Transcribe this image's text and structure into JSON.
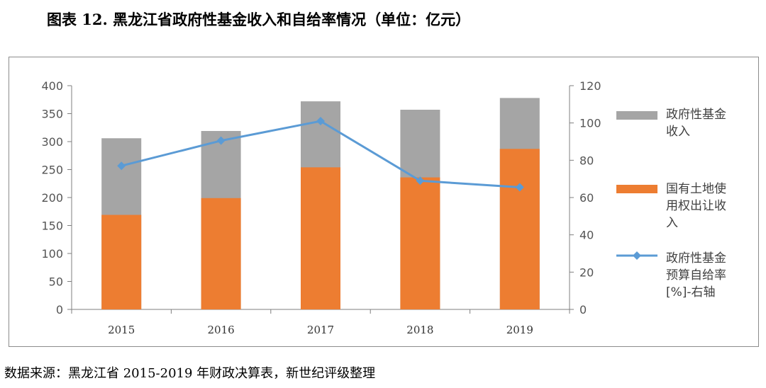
{
  "title": "图表 12. 黑龙江省政府性基金收入和自给率情况（单位：亿元）",
  "source": "数据来源：黑龙江省 2015-2019 年财政决算表，新世纪评级整理",
  "colors": {
    "gray": "#a5a5a5",
    "orange": "#ed7d31",
    "blue": "#5b9bd5",
    "axis": "#7f7f7f"
  },
  "chart_data": {
    "type": "bar+line",
    "title": "黑龙江省政府性基金收入和自给率情况（单位：亿元）",
    "categories": [
      "2015",
      "2016",
      "2017",
      "2018",
      "2019"
    ],
    "left_axis": {
      "range": [
        0,
        400
      ],
      "ticks": [
        "0",
        "50",
        "100",
        "150",
        "200",
        "250",
        "300",
        "350",
        "400"
      ]
    },
    "right_axis": {
      "range": [
        0,
        120
      ],
      "ticks": [
        "0",
        "20",
        "40",
        "60",
        "80",
        "100",
        "120"
      ]
    },
    "series": [
      {
        "name": "政府性基金收入",
        "legend_lines": [
          "政府性基金",
          "收入"
        ],
        "type": "bar",
        "axis": "left",
        "overlap": true,
        "values": [
          306,
          319,
          372,
          357,
          378
        ]
      },
      {
        "name": "国有土地使用权出让收入",
        "legend_lines": [
          "国有土地使",
          "用权出让收",
          "入"
        ],
        "type": "bar",
        "axis": "left",
        "overlap": true,
        "values": [
          169,
          199,
          254,
          236,
          287
        ]
      },
      {
        "name": "政府性基金预算自给率[%]-右轴",
        "legend_lines": [
          "政府性基金",
          "预算自给率",
          "[%]-右轴"
        ],
        "type": "line",
        "axis": "right",
        "values": [
          77,
          90.5,
          101,
          69,
          65.5
        ]
      }
    ],
    "legend_position": "right"
  }
}
